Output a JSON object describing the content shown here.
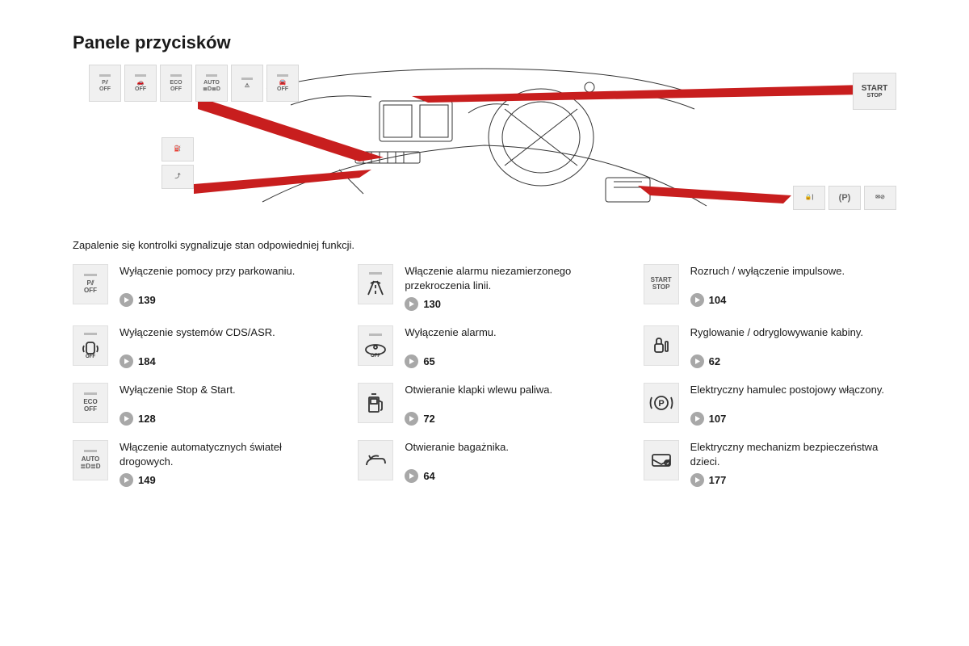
{
  "title": "Panele przycisków",
  "subtitle": "Zapalenie się kontrolki sygnalizuje stan odpowiedniej funkcji.",
  "diagram": {
    "top_row": [
      "P OFF",
      "ESP OFF",
      "ECO OFF",
      "AUTO",
      "LANE",
      "ALARM OFF"
    ],
    "left_col": [
      "FUEL",
      "TRUNK"
    ],
    "right_row": [
      "LOCK",
      "(P)",
      "CHILD"
    ],
    "start_label_1": "START",
    "start_label_2": "STOP"
  },
  "items": [
    {
      "icon_text": "P⫽\nOFF",
      "has_led": true,
      "desc": "Wyłączenie pomocy przy parkowaniu.",
      "page": "139"
    },
    {
      "icon_svg": "lane",
      "has_led": true,
      "desc": "Włączenie alarmu niezamierzonego przekroczenia linii.",
      "page": "130"
    },
    {
      "icon_text": "START\nSTOP",
      "has_led": false,
      "desc": "Rozruch / wyłączenie impulsowe.",
      "page": "104"
    },
    {
      "icon_svg": "esp",
      "has_led": true,
      "desc": "Wyłączenie systemów CDS/ASR.",
      "page": "184"
    },
    {
      "icon_svg": "alarm",
      "has_led": true,
      "desc": "Wyłączenie alarmu.",
      "page": "65"
    },
    {
      "icon_svg": "lock",
      "has_led": false,
      "desc": "Ryglowanie / odryglowywanie kabiny.",
      "page": "62"
    },
    {
      "icon_text": "ECO\nOFF",
      "has_led": true,
      "desc": "Wyłączenie Stop & Start.",
      "page": "128"
    },
    {
      "icon_svg": "fuel",
      "has_led": false,
      "desc": "Otwieranie klapki wlewu paliwa.",
      "page": "72"
    },
    {
      "icon_svg": "parking",
      "has_led": false,
      "desc": "Elektryczny hamulec postojowy włączony.",
      "page": "107"
    },
    {
      "icon_text": "AUTO\n≣D≣D",
      "has_led": true,
      "desc": "Włączenie automatycznych świateł drogowych.",
      "page": "149"
    },
    {
      "icon_svg": "trunk",
      "has_led": false,
      "desc": "Otwieranie bagażnika.",
      "page": "64"
    },
    {
      "icon_svg": "child",
      "has_led": false,
      "desc": "Elektryczny mechanizm bezpieczeństwa dzieci.",
      "page": "177"
    }
  ],
  "colors": {
    "pointer": "#c81e1e",
    "icon_bg": "#f0f0f0",
    "bullet": "#a8a8a8"
  }
}
